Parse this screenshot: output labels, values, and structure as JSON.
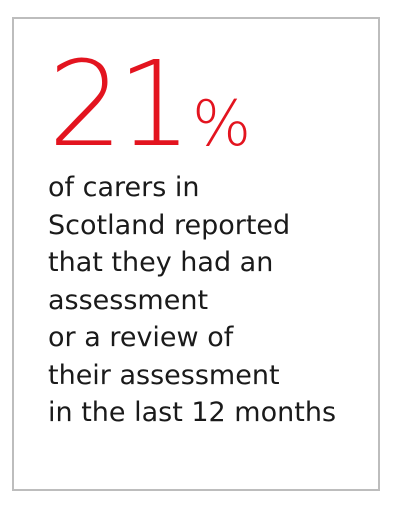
{
  "stat": {
    "number": "21",
    "symbol": "%"
  },
  "description": [
    "of carers in",
    "Scotland reported",
    "that they had an",
    "assessment",
    "or a review of",
    "their assessment",
    "in the last 12 months"
  ]
}
